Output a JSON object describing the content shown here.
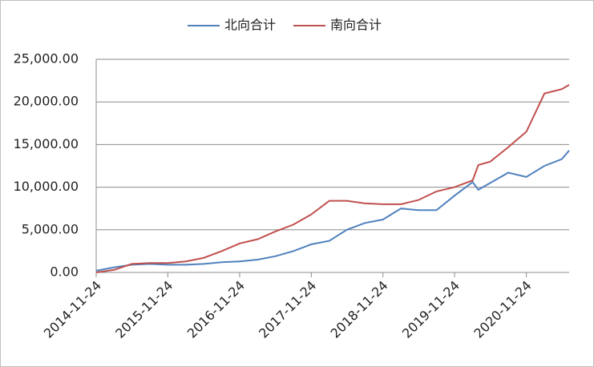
{
  "chart_data": {
    "type": "line",
    "x": [
      "2014-11-24",
      "2015-02-24",
      "2015-05-24",
      "2015-08-24",
      "2015-11-24",
      "2016-02-24",
      "2016-05-24",
      "2016-08-24",
      "2016-11-24",
      "2017-02-24",
      "2017-05-24",
      "2017-08-24",
      "2017-11-24",
      "2018-02-24",
      "2018-05-24",
      "2018-08-24",
      "2018-11-24",
      "2019-02-24",
      "2019-05-24",
      "2019-08-24",
      "2019-11-24",
      "2020-02-24",
      "2020-03-24",
      "2020-05-24",
      "2020-08-24",
      "2020-11-24",
      "2021-02-24",
      "2021-05-24",
      "2021-06-30"
    ],
    "series": [
      {
        "name": "北向合计",
        "color": "#4f81bd",
        "values": [
          200,
          600,
          900,
          1000,
          900,
          900,
          1000,
          1200,
          1300,
          1500,
          1900,
          2500,
          3300,
          3700,
          5000,
          5800,
          6200,
          7500,
          7300,
          7300,
          9000,
          10600,
          9700,
          10500,
          11700,
          11200,
          12500,
          13300,
          14300
        ]
      },
      {
        "name": "南向合计",
        "color": "#c0504d",
        "values": [
          0,
          300,
          1000,
          1100,
          1100,
          1300,
          1700,
          2500,
          3400,
          3900,
          4800,
          5600,
          6800,
          8400,
          8400,
          8100,
          8000,
          8000,
          8500,
          9500,
          10000,
          10800,
          12600,
          13000,
          14700,
          16500,
          21000,
          21500,
          22000
        ]
      }
    ],
    "xlim": [
      "2014-11-24",
      "2021-06-30"
    ],
    "xticks": [
      "2014-11-24",
      "2015-11-24",
      "2016-11-24",
      "2017-11-24",
      "2018-11-24",
      "2019-11-24",
      "2020-11-24"
    ],
    "ylim": [
      0,
      25000
    ],
    "yticks": [
      {
        "value": 0,
        "label": "0.00"
      },
      {
        "value": 5000,
        "label": "5,000.00"
      },
      {
        "value": 10000,
        "label": "10,000.00"
      },
      {
        "value": 15000,
        "label": "15,000.00"
      },
      {
        "value": 20000,
        "label": "20,000.00"
      },
      {
        "value": 25000,
        "label": "25,000.00"
      }
    ],
    "grid": true,
    "legend": "top"
  }
}
